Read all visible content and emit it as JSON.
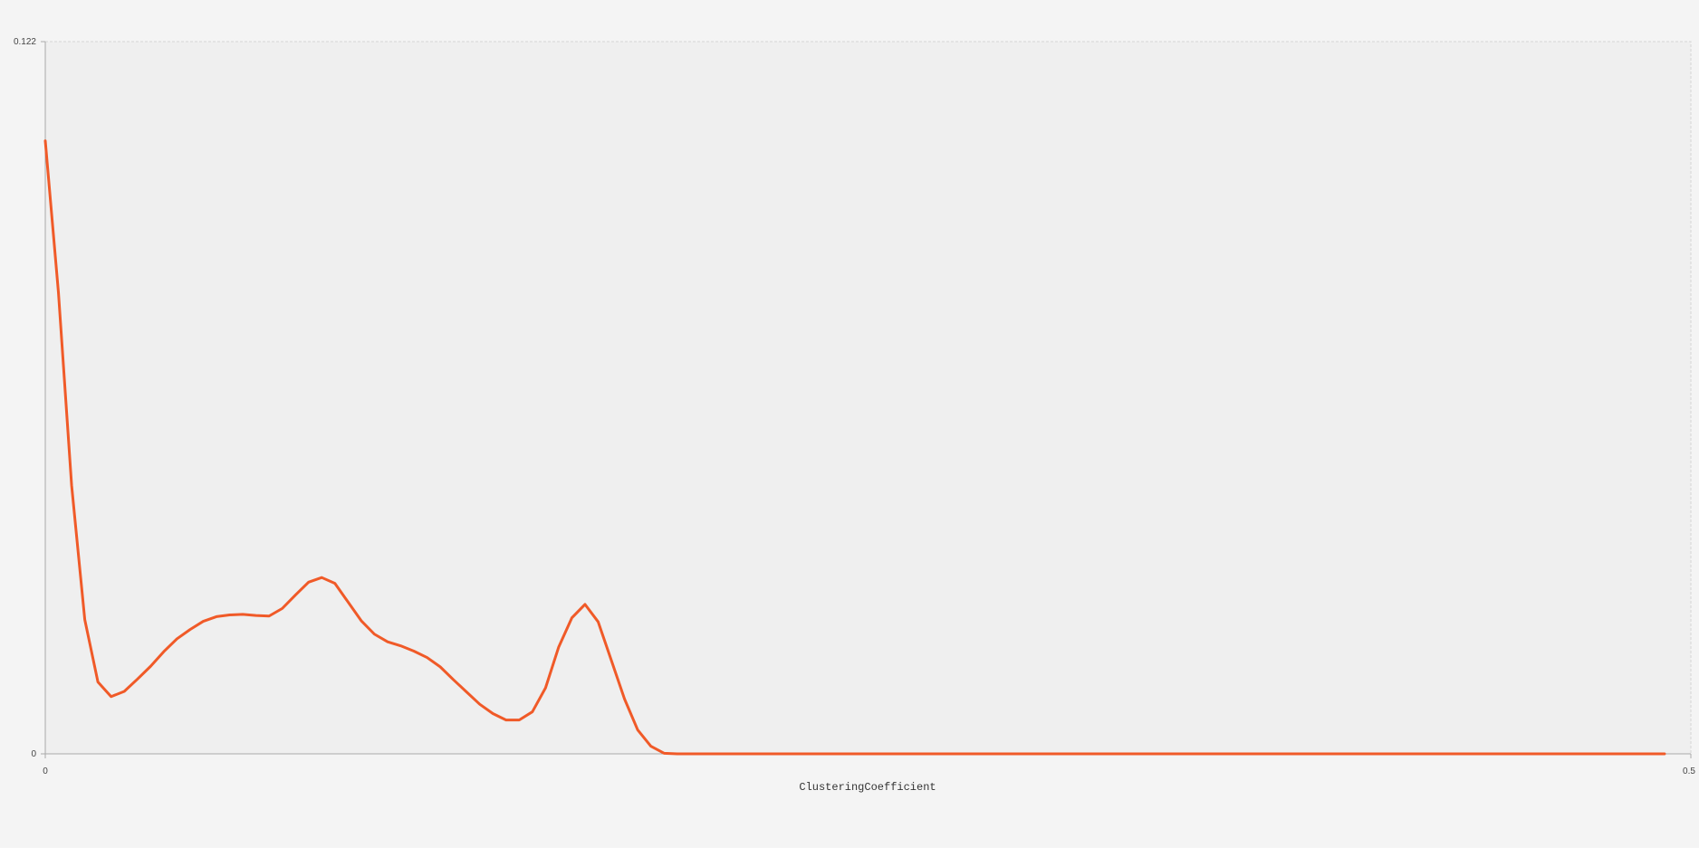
{
  "chart_data": {
    "type": "line",
    "title": "",
    "xlabel": "ClusteringCoefficient",
    "ylabel": "",
    "xlim": [
      0,
      0.5
    ],
    "ylim": [
      0,
      0.122
    ],
    "x_tick_labels": [
      "0",
      "0.5"
    ],
    "y_tick_labels": [
      "0",
      "0.122"
    ],
    "grid": false,
    "legend": "none",
    "colors": {
      "line": "#f05a28",
      "plot_background": "#efefef",
      "panel_background": "#f4f4f4",
      "axis": "#aaaaaa",
      "frame": "#d4d4d4"
    },
    "series": [
      {
        "x": [
          0,
          0.004,
          0.008,
          0.012,
          0.016,
          0.02,
          0.024,
          0.028,
          0.032,
          0.036,
          0.04,
          0.044,
          0.048,
          0.052,
          0.056,
          0.06,
          0.064,
          0.068,
          0.072,
          0.076,
          0.08,
          0.084,
          0.088,
          0.092,
          0.096,
          0.1,
          0.104,
          0.108,
          0.112,
          0.116,
          0.12,
          0.124,
          0.128,
          0.132,
          0.136,
          0.14,
          0.144,
          0.148,
          0.152,
          0.156,
          0.16,
          0.164,
          0.168,
          0.172,
          0.176,
          0.18,
          0.184,
          0.188,
          0.192,
          0.196,
          0.2,
          0.25,
          0.3,
          0.35,
          0.4,
          0.45,
          0.492
        ],
        "y": [
          0.105,
          0.079,
          0.046,
          0.023,
          0.0123,
          0.0098,
          0.0107,
          0.0128,
          0.015,
          0.0175,
          0.0197,
          0.0213,
          0.0227,
          0.0235,
          0.0238,
          0.0239,
          0.0237,
          0.0236,
          0.0249,
          0.0272,
          0.0294,
          0.0302,
          0.0292,
          0.026,
          0.0228,
          0.0205,
          0.0192,
          0.0185,
          0.0176,
          0.0165,
          0.0149,
          0.0127,
          0.0106,
          0.0085,
          0.0069,
          0.0058,
          0.0058,
          0.0072,
          0.0113,
          0.0183,
          0.0233,
          0.0256,
          0.0226,
          0.016,
          0.0094,
          0.0041,
          0.0013,
          0.0001,
          0,
          0,
          0,
          0,
          0,
          0,
          0,
          0,
          0
        ]
      }
    ]
  }
}
